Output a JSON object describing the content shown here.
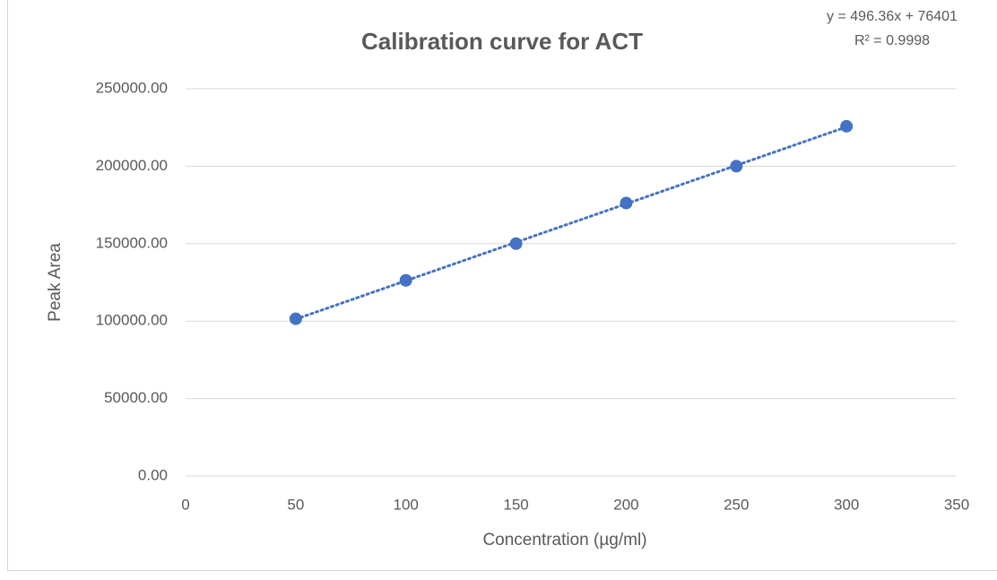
{
  "chart_data": {
    "type": "scatter",
    "title": "Calibration curve for ACT",
    "x_label": "Concentration (µg/ml)",
    "y_label": "Peak Area",
    "annotations": [
      "y = 496.36x + 76401",
      "R² = 0.9998"
    ],
    "series": [
      {
        "name": "ACT",
        "color": "#4472c4",
        "x": [
          50,
          100,
          150,
          200,
          250,
          300
        ],
        "values": [
          101500,
          126300,
          150000,
          176200,
          200000,
          225800
        ]
      }
    ],
    "trendline": "linear",
    "xlim": [
      0,
      350
    ],
    "xticks": [
      0,
      50,
      100,
      150,
      200,
      250,
      300,
      350
    ],
    "ylim": [
      0,
      250000
    ],
    "yticks": [
      {
        "value": 0,
        "label": "0.00"
      },
      {
        "value": 50000,
        "label": "50000.00"
      },
      {
        "value": 100000,
        "label": "100000.00"
      },
      {
        "value": 150000,
        "label": "150000.00"
      },
      {
        "value": 200000,
        "label": "200000.00"
      },
      {
        "value": 250000,
        "label": "250000.00"
      }
    ],
    "grid": true
  }
}
